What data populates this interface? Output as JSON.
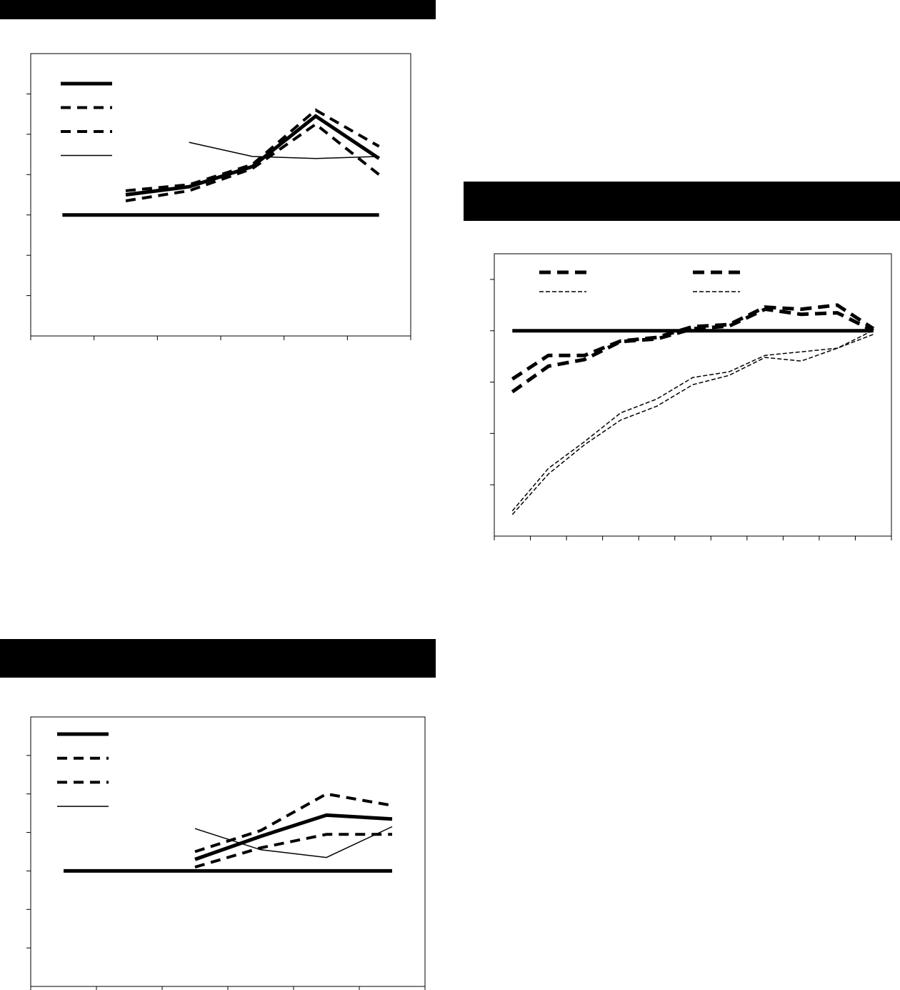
{
  "chart_data": [
    {
      "type": "line",
      "legend": "upper-left",
      "categories": [
        null,
        null,
        null,
        null,
        null,
        null
      ],
      "ylim": [
        0,
        7
      ],
      "yticks": [
        1,
        2,
        3,
        4,
        5,
        6
      ],
      "series": [
        {
          "color": "#000000",
          "style": "thick",
          "in_legend": false,
          "values": [
            3,
            3,
            3,
            3,
            3,
            3
          ]
        },
        {
          "color": "#000000",
          "style": "thick",
          "values": [
            null,
            3.5,
            3.7,
            4.2,
            5.45,
            4.4
          ]
        },
        {
          "color": "#000000",
          "style": "dashed",
          "values": [
            null,
            3.6,
            3.75,
            4.25,
            5.6,
            4.7
          ]
        },
        {
          "color": "#000000",
          "style": "dashed",
          "values": [
            null,
            3.35,
            3.6,
            4.15,
            5.25,
            4.0
          ]
        },
        {
          "color": "#000000",
          "style": "thin",
          "values": [
            null,
            null,
            4.8,
            4.45,
            4.4,
            4.45
          ]
        }
      ]
    },
    {
      "type": "line",
      "legend": "upper-left",
      "categories": [
        null,
        null,
        null,
        null,
        null,
        null,
        null,
        null,
        null,
        null,
        null
      ],
      "ylim": [
        0,
        5.5
      ],
      "yticks": [
        1,
        2,
        3,
        4,
        5
      ],
      "series": [
        {
          "color": "#000000",
          "style": "thick",
          "in_legend": false,
          "values": [
            4,
            4,
            4,
            4,
            4,
            4,
            4,
            4,
            4,
            4,
            4
          ]
        },
        {
          "color": "#000000",
          "style": "heavy-dashed",
          "values": [
            3.06,
            3.52,
            3.52,
            3.8,
            3.87,
            4.08,
            4.12,
            4.46,
            4.42,
            4.5,
            4.04
          ]
        },
        {
          "color": "#000000",
          "style": "heavy-dashed",
          "values": [
            2.81,
            3.31,
            3.44,
            3.79,
            3.84,
            4.04,
            4.09,
            4.42,
            4.32,
            4.35,
            4.0
          ]
        },
        {
          "color": "#000000",
          "style": "thin-dashed",
          "values": [
            0.49,
            1.32,
            1.84,
            2.4,
            2.67,
            3.09,
            3.2,
            3.52,
            3.59,
            3.66,
            4.01
          ]
        },
        {
          "color": "#000000",
          "style": "thin-dashed",
          "values": [
            0.42,
            1.21,
            1.78,
            2.26,
            2.53,
            2.95,
            3.13,
            3.48,
            3.41,
            3.66,
            3.93
          ]
        }
      ]
    },
    {
      "type": "line",
      "legend": "upper-left",
      "categories": [
        null,
        null,
        null,
        null,
        null,
        null
      ],
      "ylim": [
        0,
        7
      ],
      "yticks": [
        1,
        2,
        3,
        4,
        5,
        6
      ],
      "series": [
        {
          "color": "#000000",
          "style": "thick",
          "in_legend": false,
          "values": [
            3,
            3,
            3,
            3,
            3,
            3
          ]
        },
        {
          "color": "#000000",
          "style": "thick",
          "values": [
            null,
            null,
            3.3,
            3.9,
            4.45,
            4.35
          ]
        },
        {
          "color": "#000000",
          "style": "dashed",
          "values": [
            null,
            null,
            3.5,
            4.05,
            5.0,
            4.7
          ]
        },
        {
          "color": "#000000",
          "style": "dashed",
          "values": [
            null,
            null,
            3.1,
            3.6,
            3.95,
            3.95
          ]
        },
        {
          "color": "#000000",
          "style": "thin",
          "values": [
            null,
            null,
            4.1,
            3.55,
            3.35,
            4.15
          ]
        }
      ]
    }
  ]
}
